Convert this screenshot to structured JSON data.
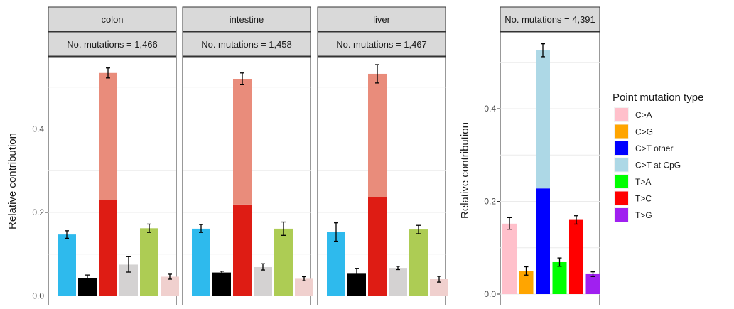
{
  "chart_data": [
    {
      "type": "bar",
      "stacked": true,
      "facets": [
        {
          "strip1": "colon",
          "strip2": "No. mutations = 1,466"
        },
        {
          "strip1": "intestine",
          "strip2": "No. mutations = 1,458"
        },
        {
          "strip1": "liver",
          "strip2": "No. mutations = 1,467"
        }
      ],
      "ylabel": "Relative contribution",
      "ylim": [
        0,
        0.6
      ],
      "yticks": [
        0.0,
        0.2,
        0.4
      ],
      "ytick_labels": [
        "0.0",
        "0.2",
        "0.4"
      ],
      "grid": true,
      "panels": [
        {
          "bars": [
            {
              "segments": [
                {
                  "value": 0.147,
                  "color": "#2EBAED"
                }
              ],
              "total": 0.147,
              "err": [
                0.138,
                0.156
              ]
            },
            {
              "segments": [
                {
                  "value": 0.043,
                  "color": "#000000"
                }
              ],
              "total": 0.043,
              "err": [
                0.037,
                0.05
              ]
            },
            {
              "segments": [
                {
                  "value": 0.229,
                  "color": "#DE1C14"
                },
                {
                  "value": 0.305,
                  "color": "#E98C7B"
                }
              ],
              "total": 0.534,
              "err": [
                0.522,
                0.546
              ]
            },
            {
              "segments": [
                {
                  "value": 0.075,
                  "color": "#D4D2D2"
                }
              ],
              "total": 0.075,
              "err": [
                0.057,
                0.094
              ]
            },
            {
              "segments": [
                {
                  "value": 0.162,
                  "color": "#ADCC54"
                }
              ],
              "total": 0.162,
              "err": [
                0.152,
                0.172
              ]
            },
            {
              "segments": [
                {
                  "value": 0.046,
                  "color": "#F0D0CE"
                }
              ],
              "total": 0.046,
              "err": [
                0.04,
                0.052
              ]
            }
          ]
        },
        {
          "bars": [
            {
              "segments": [
                {
                  "value": 0.161,
                  "color": "#2EBAED"
                }
              ],
              "total": 0.161,
              "err": [
                0.152,
                0.171
              ]
            },
            {
              "segments": [
                {
                  "value": 0.056,
                  "color": "#000000"
                }
              ],
              "total": 0.056,
              "err": [
                0.053,
                0.059
              ]
            },
            {
              "segments": [
                {
                  "value": 0.219,
                  "color": "#DE1C14"
                },
                {
                  "value": 0.301,
                  "color": "#E98C7B"
                }
              ],
              "total": 0.52,
              "err": [
                0.507,
                0.534
              ]
            },
            {
              "segments": [
                {
                  "value": 0.069,
                  "color": "#D4D2D2"
                }
              ],
              "total": 0.069,
              "err": [
                0.062,
                0.077
              ]
            },
            {
              "segments": [
                {
                  "value": 0.161,
                  "color": "#ADCC54"
                }
              ],
              "total": 0.161,
              "err": [
                0.145,
                0.177
              ]
            },
            {
              "segments": [
                {
                  "value": 0.041,
                  "color": "#F0D0CE"
                }
              ],
              "total": 0.041,
              "err": [
                0.036,
                0.046
              ]
            }
          ]
        },
        {
          "bars": [
            {
              "segments": [
                {
                  "value": 0.153,
                  "color": "#2EBAED"
                }
              ],
              "total": 0.153,
              "err": [
                0.131,
                0.175
              ]
            },
            {
              "segments": [
                {
                  "value": 0.053,
                  "color": "#000000"
                }
              ],
              "total": 0.053,
              "err": [
                0.04,
                0.066
              ]
            },
            {
              "segments": [
                {
                  "value": 0.236,
                  "color": "#DE1C14"
                },
                {
                  "value": 0.296,
                  "color": "#E98C7B"
                }
              ],
              "total": 0.532,
              "err": [
                0.51,
                0.554
              ]
            },
            {
              "segments": [
                {
                  "value": 0.067,
                  "color": "#D4D2D2"
                }
              ],
              "total": 0.067,
              "err": [
                0.063,
                0.071
              ]
            },
            {
              "segments": [
                {
                  "value": 0.159,
                  "color": "#ADCC54"
                }
              ],
              "total": 0.159,
              "err": [
                0.149,
                0.169
              ]
            },
            {
              "segments": [
                {
                  "value": 0.04,
                  "color": "#F0D0CE"
                }
              ],
              "total": 0.04,
              "err": [
                0.033,
                0.047
              ]
            }
          ]
        }
      ]
    },
    {
      "type": "bar",
      "stacked": true,
      "facets": [
        {
          "strip1": "No. mutations = 4,391"
        }
      ],
      "ylabel": "Relative contribution",
      "ylim": [
        0,
        0.56
      ],
      "yticks": [
        0.0,
        0.2,
        0.4
      ],
      "ytick_labels": [
        "0.0",
        "0.2",
        "0.4"
      ],
      "grid": true,
      "categories": [
        "C>A",
        "C>G",
        "C>T other",
        "C>T at CpG",
        "T>A",
        "T>C",
        "T>G"
      ],
      "panels": [
        {
          "bars": [
            {
              "segments": [
                {
                  "value": 0.152,
                  "color": "#FFC0CB"
                }
              ],
              "total": 0.152,
              "err": [
                0.14,
                0.165
              ]
            },
            {
              "segments": [
                {
                  "value": 0.05,
                  "color": "#FFA500"
                }
              ],
              "total": 0.05,
              "err": [
                0.041,
                0.059
              ]
            },
            {
              "segments": [
                {
                  "value": 0.228,
                  "color": "#0000FF"
                },
                {
                  "value": 0.298,
                  "color": "#ADD8E6"
                }
              ],
              "total": 0.526,
              "err": [
                0.512,
                0.54
              ]
            },
            {
              "segments": [
                {
                  "value": 0.069,
                  "color": "#00FF00"
                }
              ],
              "total": 0.069,
              "err": [
                0.06,
                0.078
              ]
            },
            {
              "segments": [
                {
                  "value": 0.16,
                  "color": "#FF0000"
                }
              ],
              "total": 0.16,
              "err": [
                0.151,
                0.169
              ]
            },
            {
              "segments": [
                {
                  "value": 0.043,
                  "color": "#A020F0"
                }
              ],
              "total": 0.043,
              "err": [
                0.038,
                0.048
              ]
            }
          ]
        }
      ],
      "legend": {
        "title": "Point mutation type",
        "placement": "right",
        "items": [
          {
            "label": "C>A",
            "color": "#FFC0CB"
          },
          {
            "label": "C>G",
            "color": "#FFA500"
          },
          {
            "label": "C>T other",
            "color": "#0000FF"
          },
          {
            "label": "C>T at CpG",
            "color": "#ADD8E6"
          },
          {
            "label": "T>A",
            "color": "#00FF00"
          },
          {
            "label": "T>C",
            "color": "#FF0000"
          },
          {
            "label": "T>G",
            "color": "#A020F0"
          }
        ]
      }
    }
  ]
}
